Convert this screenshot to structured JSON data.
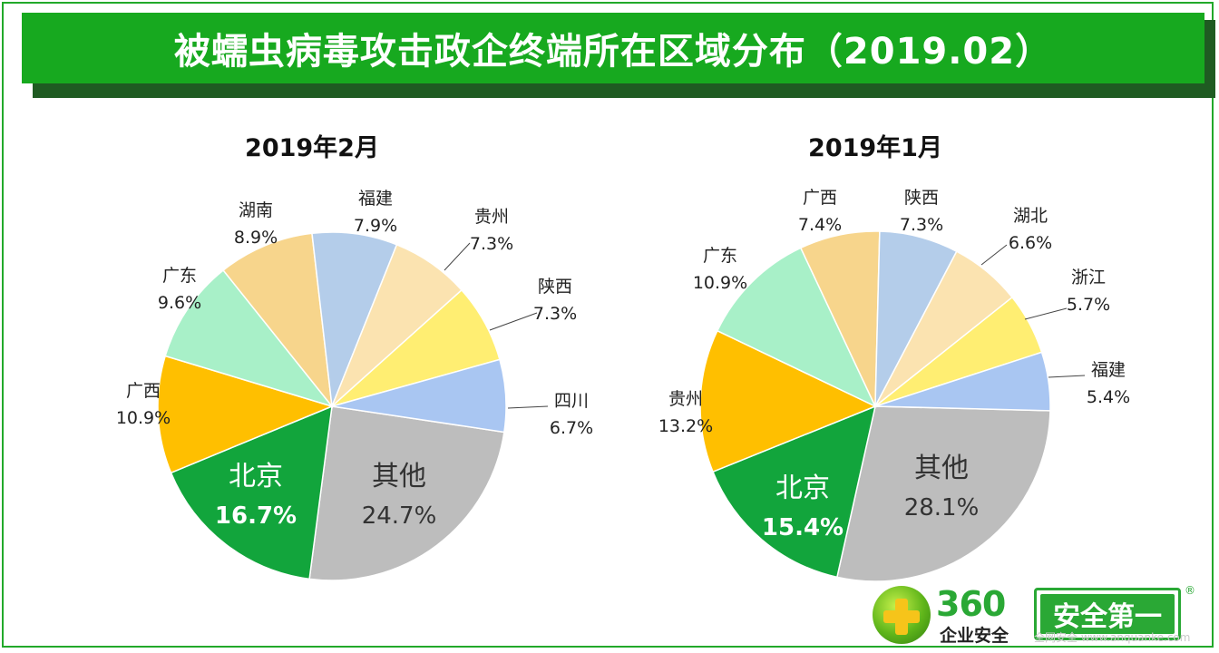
{
  "title": "被蠕虫病毒攻击政企终端所在区域分布（2019.02）",
  "colors": {
    "banner": "#17a91f",
    "frame": "#22a92a",
    "palette": [
      "#9e9e9e",
      "#12a53c",
      "#ffbf00",
      "#a8f0c8",
      "#f7d58c",
      "#b4cdea",
      "#fbe3b0",
      "#ffee72",
      "#a9c6f2"
    ]
  },
  "chart_data": [
    {
      "type": "pie",
      "title": "2019年2月",
      "slices": [
        {
          "name": "其他",
          "value": 24.7,
          "label": "24.7%",
          "color": "#bdbdbd"
        },
        {
          "name": "北京",
          "value": 16.7,
          "label": "16.7%",
          "color": "#12a53c"
        },
        {
          "name": "广西",
          "value": 10.9,
          "label": "10.9%",
          "color": "#ffbf00"
        },
        {
          "name": "广东",
          "value": 9.6,
          "label": "9.6%",
          "color": "#a8f0c8"
        },
        {
          "name": "湖南",
          "value": 8.9,
          "label": "8.9%",
          "color": "#f7d58c"
        },
        {
          "name": "福建",
          "value": 7.9,
          "label": "7.9%",
          "color": "#b4cdea"
        },
        {
          "name": "贵州",
          "value": 7.3,
          "label": "7.3%",
          "color": "#fbe3b0"
        },
        {
          "name": "陕西",
          "value": 7.3,
          "label": "7.3%",
          "color": "#ffee72"
        },
        {
          "name": "四川",
          "value": 6.7,
          "label": "6.7%",
          "color": "#a9c6f2"
        }
      ]
    },
    {
      "type": "pie",
      "title": "2019年1月",
      "slices": [
        {
          "name": "其他",
          "value": 28.1,
          "label": "28.1%",
          "color": "#bdbdbd"
        },
        {
          "name": "北京",
          "value": 15.4,
          "label": "15.4%",
          "color": "#12a53c"
        },
        {
          "name": "贵州",
          "value": 13.2,
          "label": "13.2%",
          "color": "#ffbf00"
        },
        {
          "name": "广东",
          "value": 10.9,
          "label": "10.9%",
          "color": "#a8f0c8"
        },
        {
          "name": "广西",
          "value": 7.4,
          "label": "7.4%",
          "color": "#f7d58c"
        },
        {
          "name": "陕西",
          "value": 7.3,
          "label": "7.3%",
          "color": "#b4cdea"
        },
        {
          "name": "湖北",
          "value": 6.6,
          "label": "6.6%",
          "color": "#fbe3b0"
        },
        {
          "name": "浙江",
          "value": 5.7,
          "label": "5.7%",
          "color": "#ffee72"
        },
        {
          "name": "福建",
          "value": 5.4,
          "label": "5.4%",
          "color": "#a9c6f2"
        }
      ]
    }
  ],
  "logo": {
    "number": "360",
    "subtitle": "企业安全",
    "slogan": "安全第一",
    "reg": "®"
  },
  "watermark": "全网安全 www.anquanke.com"
}
